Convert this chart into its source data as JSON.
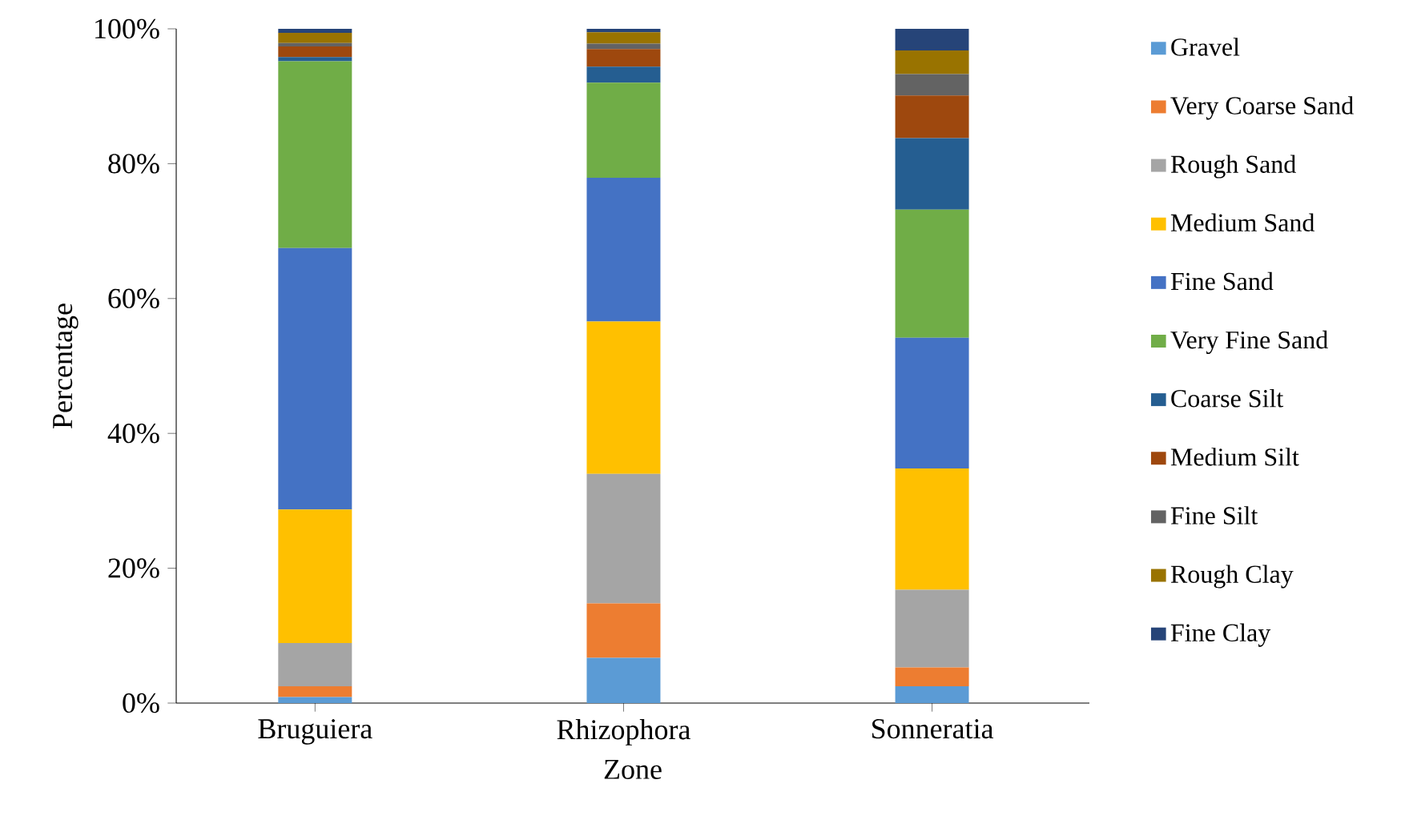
{
  "chart_data": {
    "type": "bar",
    "stacked": true,
    "xlabel": "Zone",
    "ylabel": "Percentage",
    "categories": [
      "Bruguiera",
      "Rhizophora",
      "Sonneratia"
    ],
    "ylim": [
      0,
      100
    ],
    "yticks": [
      {
        "value": 0,
        "label": "0%"
      },
      {
        "value": 20,
        "label": "20%"
      },
      {
        "value": 40,
        "label": "40%"
      },
      {
        "value": 60,
        "label": "60%"
      },
      {
        "value": 80,
        "label": "80%"
      },
      {
        "value": 100,
        "label": "100%"
      }
    ],
    "legend": "right",
    "series": [
      {
        "name": "Gravel",
        "color": "#5b9bd5",
        "values": [
          0.9,
          6.7,
          2.5
        ]
      },
      {
        "name": "Very Coarse Sand",
        "color": "#ed7d31",
        "values": [
          1.6,
          8.1,
          2.8
        ]
      },
      {
        "name": "Rough Sand",
        "color": "#a5a5a5",
        "values": [
          6.4,
          19.2,
          11.5
        ]
      },
      {
        "name": "Medium Sand",
        "color": "#ffc000",
        "values": [
          19.8,
          22.6,
          18.0
        ]
      },
      {
        "name": "Fine Sand",
        "color": "#4472c4",
        "values": [
          38.8,
          21.3,
          19.4
        ]
      },
      {
        "name": "Very Fine Sand",
        "color": "#70ad47",
        "values": [
          27.7,
          14.1,
          19.0
        ]
      },
      {
        "name": "Coarse Silt",
        "color": "#255e91",
        "values": [
          0.6,
          2.4,
          10.6
        ]
      },
      {
        "name": "Medium Silt",
        "color": "#9e480e",
        "values": [
          1.6,
          2.6,
          6.3
        ]
      },
      {
        "name": "Fine Silt",
        "color": "#636363",
        "values": [
          0.5,
          0.8,
          3.2
        ]
      },
      {
        "name": "Rough Clay",
        "color": "#997300",
        "values": [
          1.5,
          1.7,
          3.5
        ]
      },
      {
        "name": "Fine Clay",
        "color": "#264478",
        "values": [
          0.6,
          0.5,
          3.2
        ]
      }
    ]
  }
}
